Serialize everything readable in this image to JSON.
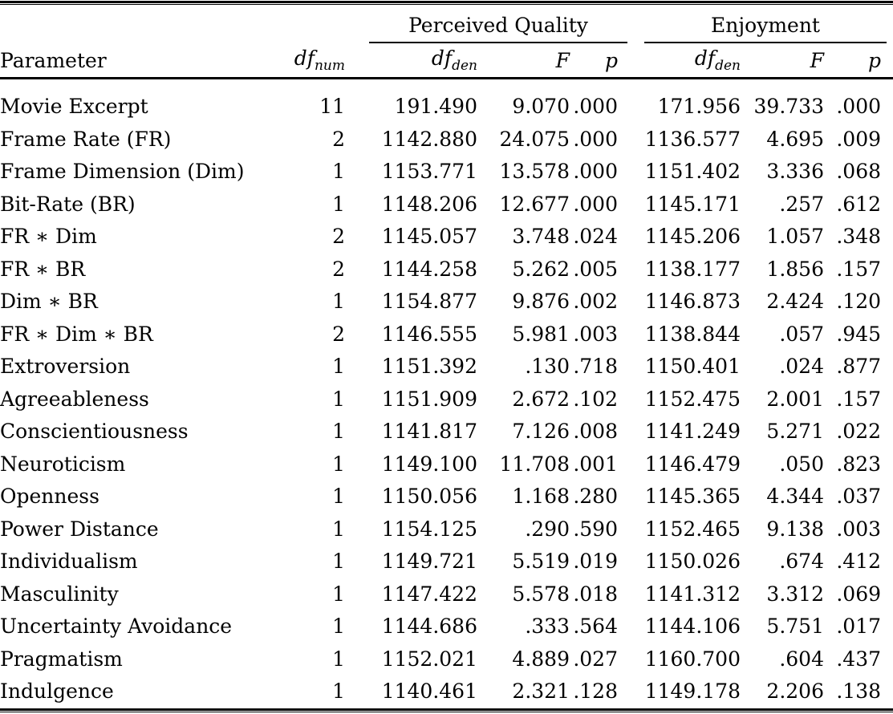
{
  "table": {
    "spanners": {
      "perceived_quality": "Perceived Quality",
      "enjoyment": "Enjoyment"
    },
    "headers": {
      "parameter": "Parameter",
      "df": "df",
      "num_sub": "num",
      "den_sub": "den",
      "f": "F",
      "p": "p"
    },
    "rows": [
      {
        "parameter": "Movie Excerpt",
        "df_num": "11",
        "perceived_quality": {
          "df_den": "191.490",
          "f": "9.070",
          "p": ".000"
        },
        "enjoyment": {
          "df_den": "171.956",
          "f": "39.733",
          "p": ".000"
        }
      },
      {
        "parameter": "Frame Rate (FR)",
        "df_num": "2",
        "perceived_quality": {
          "df_den": "1142.880",
          "f": "24.075",
          "p": ".000"
        },
        "enjoyment": {
          "df_den": "1136.577",
          "f": "4.695",
          "p": ".009"
        }
      },
      {
        "parameter": "Frame Dimension (Dim)",
        "df_num": "1",
        "perceived_quality": {
          "df_den": "1153.771",
          "f": "13.578",
          "p": ".000"
        },
        "enjoyment": {
          "df_den": "1151.402",
          "f": "3.336",
          "p": ".068"
        }
      },
      {
        "parameter": "Bit-Rate (BR)",
        "df_num": "1",
        "perceived_quality": {
          "df_den": "1148.206",
          "f": "12.677",
          "p": ".000"
        },
        "enjoyment": {
          "df_den": "1145.171",
          "f": ".257",
          "p": ".612"
        }
      },
      {
        "parameter": "FR ∗ Dim",
        "df_num": "2",
        "perceived_quality": {
          "df_den": "1145.057",
          "f": "3.748",
          "p": ".024"
        },
        "enjoyment": {
          "df_den": "1145.206",
          "f": "1.057",
          "p": ".348"
        }
      },
      {
        "parameter": "FR ∗ BR",
        "df_num": "2",
        "perceived_quality": {
          "df_den": "1144.258",
          "f": "5.262",
          "p": ".005"
        },
        "enjoyment": {
          "df_den": "1138.177",
          "f": "1.856",
          "p": ".157"
        }
      },
      {
        "parameter": "Dim ∗ BR",
        "df_num": "1",
        "perceived_quality": {
          "df_den": "1154.877",
          "f": "9.876",
          "p": ".002"
        },
        "enjoyment": {
          "df_den": "1146.873",
          "f": "2.424",
          "p": ".120"
        }
      },
      {
        "parameter": "FR ∗ Dim ∗ BR",
        "df_num": "2",
        "perceived_quality": {
          "df_den": "1146.555",
          "f": "5.981",
          "p": ".003"
        },
        "enjoyment": {
          "df_den": "1138.844",
          "f": ".057",
          "p": ".945"
        }
      },
      {
        "parameter": "Extroversion",
        "df_num": "1",
        "perceived_quality": {
          "df_den": "1151.392",
          "f": ".130",
          "p": ".718"
        },
        "enjoyment": {
          "df_den": "1150.401",
          "f": ".024",
          "p": ".877"
        }
      },
      {
        "parameter": "Agreeableness",
        "df_num": "1",
        "perceived_quality": {
          "df_den": "1151.909",
          "f": "2.672",
          "p": ".102"
        },
        "enjoyment": {
          "df_den": "1152.475",
          "f": "2.001",
          "p": ".157"
        }
      },
      {
        "parameter": "Conscientiousness",
        "df_num": "1",
        "perceived_quality": {
          "df_den": "1141.817",
          "f": "7.126",
          "p": ".008"
        },
        "enjoyment": {
          "df_den": "1141.249",
          "f": "5.271",
          "p": ".022"
        }
      },
      {
        "parameter": "Neuroticism",
        "df_num": "1",
        "perceived_quality": {
          "df_den": "1149.100",
          "f": "11.708",
          "p": ".001"
        },
        "enjoyment": {
          "df_den": "1146.479",
          "f": ".050",
          "p": ".823"
        }
      },
      {
        "parameter": "Openness",
        "df_num": "1",
        "perceived_quality": {
          "df_den": "1150.056",
          "f": "1.168",
          "p": ".280"
        },
        "enjoyment": {
          "df_den": "1145.365",
          "f": "4.344",
          "p": ".037"
        }
      },
      {
        "parameter": "Power Distance",
        "df_num": "1",
        "perceived_quality": {
          "df_den": "1154.125",
          "f": ".290",
          "p": ".590"
        },
        "enjoyment": {
          "df_den": "1152.465",
          "f": "9.138",
          "p": ".003"
        }
      },
      {
        "parameter": "Individualism",
        "df_num": "1",
        "perceived_quality": {
          "df_den": "1149.721",
          "f": "5.519",
          "p": ".019"
        },
        "enjoyment": {
          "df_den": "1150.026",
          "f": ".674",
          "p": ".412"
        }
      },
      {
        "parameter": "Masculinity",
        "df_num": "1",
        "perceived_quality": {
          "df_den": "1147.422",
          "f": "5.578",
          "p": ".018"
        },
        "enjoyment": {
          "df_den": "1141.312",
          "f": "3.312",
          "p": ".069"
        }
      },
      {
        "parameter": "Uncertainty Avoidance",
        "df_num": "1",
        "perceived_quality": {
          "df_den": "1144.686",
          "f": ".333",
          "p": ".564"
        },
        "enjoyment": {
          "df_den": "1144.106",
          "f": "5.751",
          "p": ".017"
        }
      },
      {
        "parameter": "Pragmatism",
        "df_num": "1",
        "perceived_quality": {
          "df_den": "1152.021",
          "f": "4.889",
          "p": ".027"
        },
        "enjoyment": {
          "df_den": "1160.700",
          "f": ".604",
          "p": ".437"
        }
      },
      {
        "parameter": "Indulgence",
        "df_num": "1",
        "perceived_quality": {
          "df_den": "1140.461",
          "f": "2.321",
          "p": ".128"
        },
        "enjoyment": {
          "df_den": "1149.178",
          "f": "2.206",
          "p": ".138"
        }
      }
    ]
  }
}
